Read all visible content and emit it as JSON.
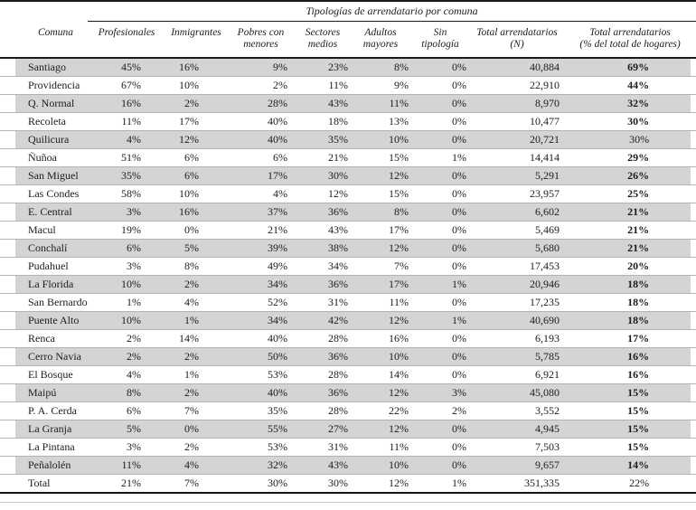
{
  "chart_data": {
    "type": "table",
    "title": "Tipologías de arrendatario por comuna",
    "columns": [
      "Comuna",
      "Profesionales",
      "Inmigrantes",
      "Pobres con\nmenores",
      "Sectores\nmedios",
      "Adultos\nmayores",
      "Sin\ntipología",
      "Total arrendatarios\n(N)",
      "Total arrendatarios\n(% del total de hogares)"
    ],
    "rows": [
      {
        "comuna": "Santiago",
        "values": [
          "45%",
          "16%",
          "9%",
          "23%",
          "8%",
          "0%"
        ],
        "total_n": "40,884",
        "total_pct": "69%",
        "total_pct_bold": true,
        "shaded": true
      },
      {
        "comuna": "Providencia",
        "values": [
          "67%",
          "10%",
          "2%",
          "11%",
          "9%",
          "0%"
        ],
        "total_n": "22,910",
        "total_pct": "44%",
        "total_pct_bold": true,
        "shaded": false
      },
      {
        "comuna": "Q. Normal",
        "values": [
          "16%",
          "2%",
          "28%",
          "43%",
          "11%",
          "0%"
        ],
        "total_n": "8,970",
        "total_pct": "32%",
        "total_pct_bold": true,
        "shaded": true
      },
      {
        "comuna": "Recoleta",
        "values": [
          "11%",
          "17%",
          "40%",
          "18%",
          "13%",
          "0%"
        ],
        "total_n": "10,477",
        "total_pct": "30%",
        "total_pct_bold": true,
        "shaded": false
      },
      {
        "comuna": "Quilicura",
        "values": [
          "4%",
          "12%",
          "40%",
          "35%",
          "10%",
          "0%"
        ],
        "total_n": "20,721",
        "total_pct": "30%",
        "total_pct_bold": false,
        "shaded": true
      },
      {
        "comuna": "Ñuñoa",
        "values": [
          "51%",
          "6%",
          "6%",
          "21%",
          "15%",
          "1%"
        ],
        "total_n": "14,414",
        "total_pct": "29%",
        "total_pct_bold": true,
        "shaded": false
      },
      {
        "comuna": "San Miguel",
        "values": [
          "35%",
          "6%",
          "17%",
          "30%",
          "12%",
          "0%"
        ],
        "total_n": "5,291",
        "total_pct": "26%",
        "total_pct_bold": true,
        "shaded": true
      },
      {
        "comuna": "Las Condes",
        "values": [
          "58%",
          "10%",
          "4%",
          "12%",
          "15%",
          "0%"
        ],
        "total_n": "23,957",
        "total_pct": "25%",
        "total_pct_bold": true,
        "shaded": false
      },
      {
        "comuna": "E. Central",
        "values": [
          "3%",
          "16%",
          "37%",
          "36%",
          "8%",
          "0%"
        ],
        "total_n": "6,602",
        "total_pct": "21%",
        "total_pct_bold": true,
        "shaded": true
      },
      {
        "comuna": "Macul",
        "values": [
          "19%",
          "0%",
          "21%",
          "43%",
          "17%",
          "0%"
        ],
        "total_n": "5,469",
        "total_pct": "21%",
        "total_pct_bold": true,
        "shaded": false
      },
      {
        "comuna": "Conchalí",
        "values": [
          "6%",
          "5%",
          "39%",
          "38%",
          "12%",
          "0%"
        ],
        "total_n": "5,680",
        "total_pct": "21%",
        "total_pct_bold": true,
        "shaded": true
      },
      {
        "comuna": "Pudahuel",
        "values": [
          "3%",
          "8%",
          "49%",
          "34%",
          "7%",
          "0%"
        ],
        "total_n": "17,453",
        "total_pct": "20%",
        "total_pct_bold": true,
        "shaded": false
      },
      {
        "comuna": "La Florida",
        "values": [
          "10%",
          "2%",
          "34%",
          "36%",
          "17%",
          "1%"
        ],
        "total_n": "20,946",
        "total_pct": "18%",
        "total_pct_bold": true,
        "shaded": true
      },
      {
        "comuna": "San Bernardo",
        "values": [
          "1%",
          "4%",
          "52%",
          "31%",
          "11%",
          "0%"
        ],
        "total_n": "17,235",
        "total_pct": "18%",
        "total_pct_bold": true,
        "shaded": false
      },
      {
        "comuna": "Puente Alto",
        "values": [
          "10%",
          "1%",
          "34%",
          "42%",
          "12%",
          "1%"
        ],
        "total_n": "40,690",
        "total_pct": "18%",
        "total_pct_bold": true,
        "shaded": true
      },
      {
        "comuna": "Renca",
        "values": [
          "2%",
          "14%",
          "40%",
          "28%",
          "16%",
          "0%"
        ],
        "total_n": "6,193",
        "total_pct": "17%",
        "total_pct_bold": true,
        "shaded": false
      },
      {
        "comuna": "Cerro Navia",
        "values": [
          "2%",
          "2%",
          "50%",
          "36%",
          "10%",
          "0%"
        ],
        "total_n": "5,785",
        "total_pct": "16%",
        "total_pct_bold": true,
        "shaded": true
      },
      {
        "comuna": "El Bosque",
        "values": [
          "4%",
          "1%",
          "53%",
          "28%",
          "14%",
          "0%"
        ],
        "total_n": "6,921",
        "total_pct": "16%",
        "total_pct_bold": true,
        "shaded": false
      },
      {
        "comuna": "Maipú",
        "values": [
          "8%",
          "2%",
          "40%",
          "36%",
          "12%",
          "3%"
        ],
        "total_n": "45,080",
        "total_pct": "15%",
        "total_pct_bold": true,
        "shaded": true
      },
      {
        "comuna": "P. A. Cerda",
        "values": [
          "6%",
          "7%",
          "35%",
          "28%",
          "22%",
          "2%"
        ],
        "total_n": "3,552",
        "total_pct": "15%",
        "total_pct_bold": true,
        "shaded": false
      },
      {
        "comuna": "La Granja",
        "values": [
          "5%",
          "0%",
          "55%",
          "27%",
          "12%",
          "0%"
        ],
        "total_n": "4,945",
        "total_pct": "15%",
        "total_pct_bold": true,
        "shaded": true
      },
      {
        "comuna": "La Pintana",
        "values": [
          "3%",
          "2%",
          "53%",
          "31%",
          "11%",
          "0%"
        ],
        "total_n": "7,503",
        "total_pct": "15%",
        "total_pct_bold": true,
        "shaded": false
      },
      {
        "comuna": "Peñalolén",
        "values": [
          "11%",
          "4%",
          "32%",
          "43%",
          "10%",
          "0%"
        ],
        "total_n": "9,657",
        "total_pct": "14%",
        "total_pct_bold": true,
        "shaded": true
      },
      {
        "comuna": "Total",
        "values": [
          "21%",
          "7%",
          "30%",
          "30%",
          "12%",
          "1%"
        ],
        "total_n": "351,335",
        "total_pct": "22%",
        "total_pct_bold": false,
        "shaded": false
      }
    ]
  },
  "colors": {
    "stripe": "#d4d4d4",
    "row_separator": "#b3b3b3",
    "rule": "#1a1a1a",
    "text": "#1c1c1c",
    "bottom_hairline": "#c8c8c8"
  }
}
